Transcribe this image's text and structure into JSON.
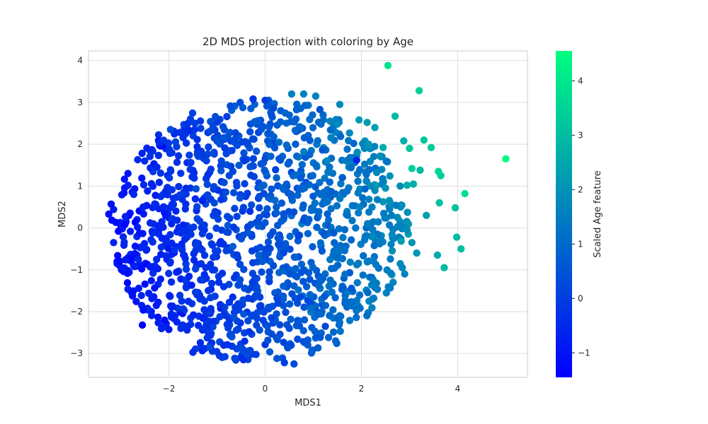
{
  "chart_data": {
    "type": "scatter",
    "title": "2D MDS projection with coloring by Age",
    "xlabel": "MDS1",
    "ylabel": "MDS2",
    "xlim": [
      -3.67,
      5.45
    ],
    "ylim": [
      -3.57,
      4.23
    ],
    "xticks": [
      -2,
      0,
      2,
      4
    ],
    "yticks": [
      -3,
      -2,
      -1,
      0,
      1,
      2,
      3,
      4
    ],
    "grid": true,
    "colorbar": {
      "label": "Scaled Age feature",
      "range": [
        -1.45,
        4.55
      ],
      "ticks": [
        -1,
        0,
        1,
        2,
        3,
        4
      ],
      "colormap": "winter",
      "color_low": "#0000ff",
      "color_high": "#00ff80"
    },
    "highlighted_points": [
      {
        "x": 2.55,
        "y": 3.88,
        "c": 3.9
      },
      {
        "x": 3.2,
        "y": 3.28,
        "c": 3.5
      },
      {
        "x": 5.0,
        "y": 1.65,
        "c": 4.5
      },
      {
        "x": 4.15,
        "y": 0.82,
        "c": 3.8
      },
      {
        "x": 3.6,
        "y": 1.35,
        "c": 3.6
      },
      {
        "x": 3.05,
        "y": 1.42,
        "c": 3.4
      },
      {
        "x": 3.0,
        "y": 1.9,
        "c": 3.2
      },
      {
        "x": 2.7,
        "y": 2.67,
        "c": 2.9
      },
      {
        "x": 3.45,
        "y": 1.92,
        "c": 3.3
      },
      {
        "x": 3.3,
        "y": 2.1,
        "c": 3.2
      },
      {
        "x": 3.65,
        "y": 1.25,
        "c": 3.4
      },
      {
        "x": 3.95,
        "y": 0.48,
        "c": 3.1
      },
      {
        "x": 3.62,
        "y": 0.6,
        "c": 3.1
      },
      {
        "x": 3.98,
        "y": -0.22,
        "c": 3.0
      },
      {
        "x": 4.07,
        "y": -0.5,
        "c": 3.0
      },
      {
        "x": 3.72,
        "y": -0.95,
        "c": 2.9
      },
      {
        "x": 3.58,
        "y": -0.65,
        "c": 2.6
      },
      {
        "x": 2.45,
        "y": 1.92,
        "c": 2.6
      },
      {
        "x": 2.88,
        "y": 2.08,
        "c": 2.7
      },
      {
        "x": 3.22,
        "y": 1.38,
        "c": 2.9
      },
      {
        "x": 2.95,
        "y": 1.02,
        "c": 2.6
      },
      {
        "x": 3.08,
        "y": 1.05,
        "c": 2.6
      },
      {
        "x": 3.35,
        "y": 0.3,
        "c": 2.3
      },
      {
        "x": 0.55,
        "y": 3.2,
        "c": 1.6
      },
      {
        "x": 0.8,
        "y": 3.2,
        "c": 1.6
      },
      {
        "x": 1.05,
        "y": 3.15,
        "c": 1.6
      },
      {
        "x": 1.55,
        "y": 2.95,
        "c": 1.8
      },
      {
        "x": 1.95,
        "y": 2.58,
        "c": 2.2
      },
      {
        "x": 2.12,
        "y": 2.52,
        "c": 2.2
      },
      {
        "x": 2.28,
        "y": 2.4,
        "c": 2.3
      },
      {
        "x": 2.15,
        "y": 2.0,
        "c": 2.1
      },
      {
        "x": -1.5,
        "y": -2.97,
        "c": -0.4
      },
      {
        "x": -1.15,
        "y": -2.85,
        "c": 0.3
      },
      {
        "x": -1.75,
        "y": -2.4,
        "c": -0.4
      },
      {
        "x": -2.55,
        "y": -2.32,
        "c": -1.4
      },
      {
        "x": -3.25,
        "y": 0.33,
        "c": -1.1
      },
      {
        "x": -3.2,
        "y": 0.57,
        "c": -1.1
      },
      {
        "x": -2.85,
        "y": 1.3,
        "c": -1.0
      },
      {
        "x": -0.25,
        "y": 3.08,
        "c": -0.2
      },
      {
        "x": 0.0,
        "y": 3.05,
        "c": 0.0
      },
      {
        "x": -0.45,
        "y": -3.15,
        "c": -0.4
      },
      {
        "x": 0.4,
        "y": -3.22,
        "c": 0.0
      },
      {
        "x": 0.6,
        "y": -3.25,
        "c": 0.3
      },
      {
        "x": 1.35,
        "y": 2.55,
        "c": 1.7
      },
      {
        "x": 1.5,
        "y": 2.48,
        "c": 1.8
      },
      {
        "x": 2.3,
        "y": 1.0,
        "c": 2.1
      },
      {
        "x": 2.5,
        "y": 0.95,
        "c": 2.0
      },
      {
        "x": 2.6,
        "y": 0.6,
        "c": 1.9
      },
      {
        "x": 2.75,
        "y": 0.25,
        "c": 1.8
      },
      {
        "x": 2.95,
        "y": -0.05,
        "c": 1.9
      },
      {
        "x": 3.05,
        "y": -0.35,
        "c": 2.0
      },
      {
        "x": 3.15,
        "y": -0.6,
        "c": 2.1
      },
      {
        "x": 2.85,
        "y": -0.95,
        "c": 1.7
      },
      {
        "x": 2.9,
        "y": -1.1,
        "c": 1.6
      },
      {
        "x": 1.9,
        "y": 1.62,
        "c": -0.6
      }
    ],
    "bulk_cloud": {
      "note": "Dense cloud of points roughly within a disk centered near (-0.1, -0.05); color increases with MDS1",
      "center": [
        -0.1,
        -0.05
      ],
      "x_extent": [
        -3.2,
        3.2
      ],
      "y_extent": [
        -3.25,
        3.15
      ],
      "color_range": [
        -1.4,
        2.4
      ]
    }
  }
}
